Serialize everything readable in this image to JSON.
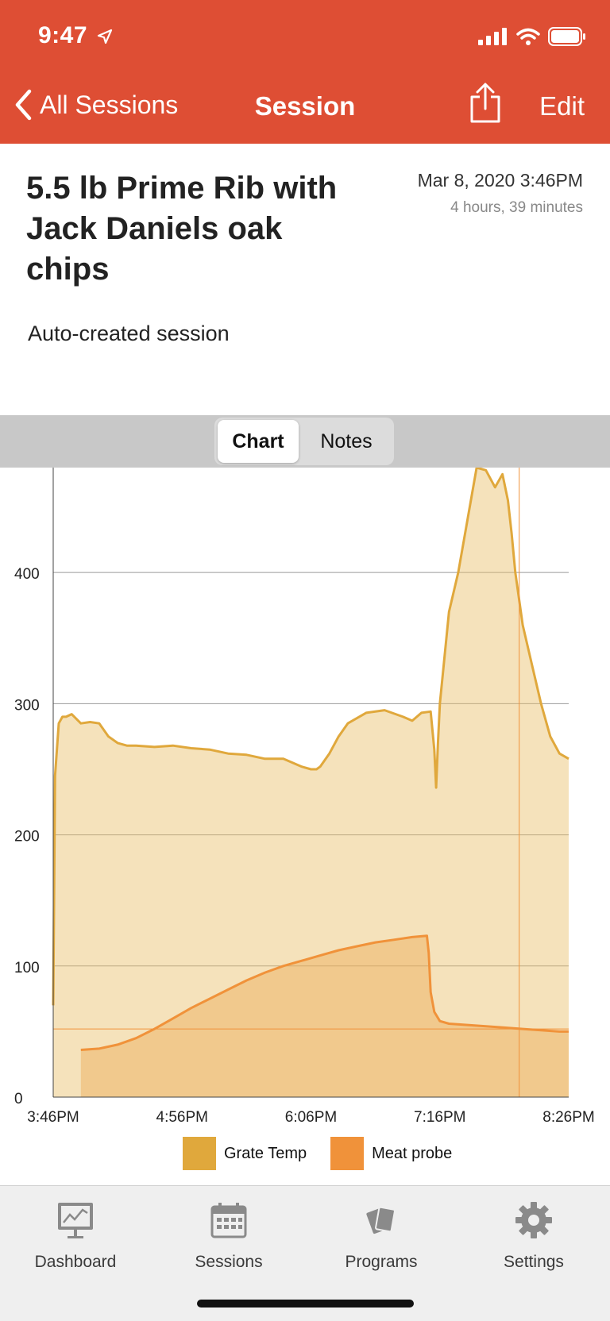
{
  "status_bar": {
    "time": "9:47"
  },
  "nav": {
    "back_label": "All Sessions",
    "title": "Session",
    "edit_label": "Edit"
  },
  "session": {
    "title": "5.5 lb Prime Rib with Jack Daniels oak chips",
    "date": "Mar 8, 2020 3:46PM",
    "duration": "4 hours, 39 minutes",
    "description": "Auto-created session"
  },
  "segment": {
    "options": [
      "Chart",
      "Notes"
    ],
    "selected": "Chart"
  },
  "chart_data": {
    "type": "area",
    "x_ticks": [
      "3:46PM",
      "4:56PM",
      "6:06PM",
      "7:16PM",
      "8:26PM"
    ],
    "y_ticks": [
      "0",
      "100",
      "200",
      "300",
      "400"
    ],
    "ylim": [
      0,
      480
    ],
    "grid": true,
    "legend_position": "bottom",
    "reference_line_y": 52,
    "series": [
      {
        "name": "Grate Temp",
        "color": "#e0a83c",
        "x": [
          "3:46PM",
          "3:47PM",
          "3:49PM",
          "3:51PM",
          "3:53PM",
          "3:56PM",
          "4:01PM",
          "4:06PM",
          "4:11PM",
          "4:16PM",
          "4:21PM",
          "4:26PM",
          "4:31PM",
          "4:41PM",
          "4:51PM",
          "5:01PM",
          "5:11PM",
          "5:21PM",
          "5:31PM",
          "5:41PM",
          "5:51PM",
          "6:01PM",
          "6:06PM",
          "6:09PM",
          "6:11PM",
          "6:16PM",
          "6:21PM",
          "6:26PM",
          "6:36PM",
          "6:46PM",
          "6:56PM",
          "7:01PM",
          "7:06PM",
          "7:11PM",
          "7:13PM",
          "7:14PM",
          "7:15PM",
          "7:16PM",
          "7:21PM",
          "7:26PM",
          "7:31PM",
          "7:36PM",
          "7:41PM",
          "7:46PM",
          "7:50PM",
          "7:53PM",
          "7:55PM",
          "7:57PM",
          "8:01PM",
          "8:06PM",
          "8:11PM",
          "8:16PM",
          "8:21PM",
          "8:26PM"
        ],
        "y": [
          70,
          245,
          285,
          290,
          290,
          292,
          285,
          286,
          285,
          275,
          270,
          268,
          268,
          267,
          268,
          266,
          265,
          262,
          261,
          258,
          258,
          252,
          250,
          250,
          252,
          262,
          275,
          285,
          293,
          295,
          290,
          287,
          293,
          294,
          265,
          236,
          270,
          300,
          370,
          400,
          440,
          480,
          478,
          465,
          475,
          455,
          430,
          400,
          360,
          330,
          300,
          275,
          262,
          258
        ]
      },
      {
        "name": "Meat probe",
        "color": "#f0923a",
        "x": [
          "4:01PM",
          "4:11PM",
          "4:21PM",
          "4:31PM",
          "4:41PM",
          "4:51PM",
          "5:01PM",
          "5:11PM",
          "5:21PM",
          "5:31PM",
          "5:41PM",
          "5:51PM",
          "6:01PM",
          "6:11PM",
          "6:21PM",
          "6:31PM",
          "6:41PM",
          "6:51PM",
          "7:01PM",
          "7:09PM",
          "7:10PM",
          "7:11PM",
          "7:13PM",
          "7:16PM",
          "7:21PM",
          "7:31PM",
          "7:41PM",
          "7:51PM",
          "8:01PM",
          "8:11PM",
          "8:21PM",
          "8:26PM"
        ],
        "y": [
          36,
          37,
          40,
          45,
          52,
          60,
          68,
          75,
          82,
          89,
          95,
          100,
          104,
          108,
          112,
          115,
          118,
          120,
          122,
          123,
          110,
          80,
          65,
          58,
          56,
          55,
          54,
          53,
          52,
          51,
          50,
          50
        ]
      }
    ]
  },
  "tabs": [
    {
      "label": "Dashboard",
      "icon": "dashboard-icon"
    },
    {
      "label": "Sessions",
      "icon": "calendar-icon"
    },
    {
      "label": "Programs",
      "icon": "cards-icon"
    },
    {
      "label": "Settings",
      "icon": "gear-icon"
    }
  ]
}
